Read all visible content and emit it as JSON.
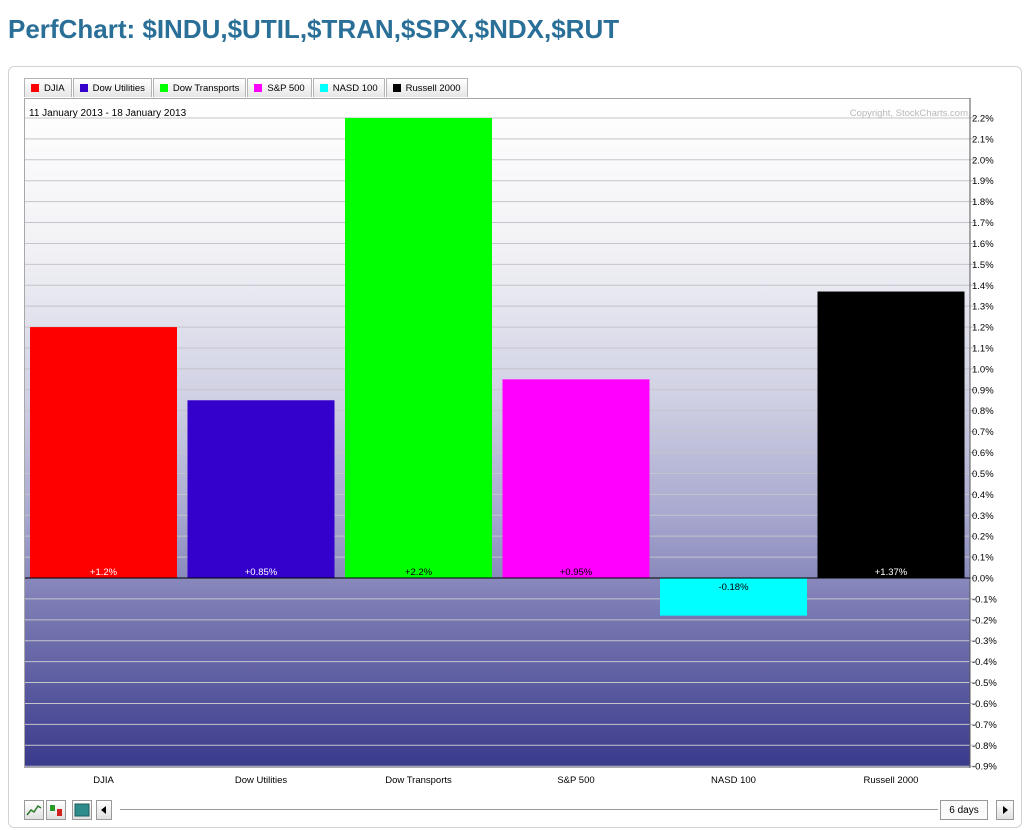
{
  "page": {
    "title": "PerfChart: $INDU,$UTIL,$TRAN,$SPX,$NDX,$RUT"
  },
  "legend": [
    {
      "label": "DJIA",
      "color": "#ff0000"
    },
    {
      "label": "Dow Utilities",
      "color": "#3300cc"
    },
    {
      "label": "Dow Transports",
      "color": "#00ff00"
    },
    {
      "label": "S&P 500",
      "color": "#ff00ff"
    },
    {
      "label": "NASD 100",
      "color": "#00ffff"
    },
    {
      "label": "Russell 2000",
      "color": "#000000"
    }
  ],
  "chart_header": {
    "date_range": "11 January 2013 - 18 January 2013",
    "copyright": "Copyright, StockCharts.com"
  },
  "chart_data": {
    "type": "bar",
    "categories": [
      "DJIA",
      "Dow Utilities",
      "Dow Transports",
      "S&P 500",
      "NASD 100",
      "Russell 2000"
    ],
    "values": [
      1.2,
      0.85,
      2.2,
      0.95,
      -0.18,
      1.37
    ],
    "value_labels": [
      "+1.2%",
      "+0.85%",
      "+2.2%",
      "+0.95%",
      "-0.18%",
      "+1.37%"
    ],
    "colors": [
      "#ff0000",
      "#3300cc",
      "#00ff00",
      "#ff00ff",
      "#00ffff",
      "#000000"
    ],
    "label_colors": [
      "#ffffff",
      "#ffffff",
      "#000000",
      "#000000",
      "#000000",
      "#ffffff"
    ],
    "ylim": [
      -0.9,
      2.2
    ],
    "y_ticks": [
      2.2,
      2.1,
      2.0,
      1.9,
      1.8,
      1.7,
      1.6,
      1.5,
      1.4,
      1.3,
      1.2,
      1.1,
      1.0,
      0.9,
      0.8,
      0.7,
      0.6,
      0.5,
      0.4,
      0.3,
      0.2,
      0.1,
      0.0,
      -0.1,
      -0.2,
      -0.3,
      -0.4,
      -0.5,
      -0.6,
      -0.7,
      -0.8,
      -0.9
    ],
    "y_tick_labels": [
      "2.2%",
      "2.1%",
      "2.0%",
      "1.9%",
      "1.8%",
      "1.7%",
      "1.6%",
      "1.5%",
      "1.4%",
      "1.3%",
      "1.2%",
      "1.1%",
      "1.0%",
      "0.9%",
      "0.8%",
      "0.7%",
      "0.6%",
      "0.5%",
      "0.4%",
      "0.3%",
      "0.2%",
      "0.1%",
      "0.0%",
      "-0.1%",
      "-0.2%",
      "-0.3%",
      "-0.4%",
      "-0.5%",
      "-0.6%",
      "-0.7%",
      "-0.8%",
      "-0.9%"
    ],
    "y_axis_position": "right",
    "grid": true,
    "legend_position": "top-left",
    "title": "",
    "xlabel": "",
    "ylabel": ""
  },
  "toolbar": {
    "line_chart_icon": "line-chart-icon",
    "bar_chart_icon": "bar-chart-icon",
    "histogram_icon": "histogram-icon",
    "period_label": "6 days"
  }
}
